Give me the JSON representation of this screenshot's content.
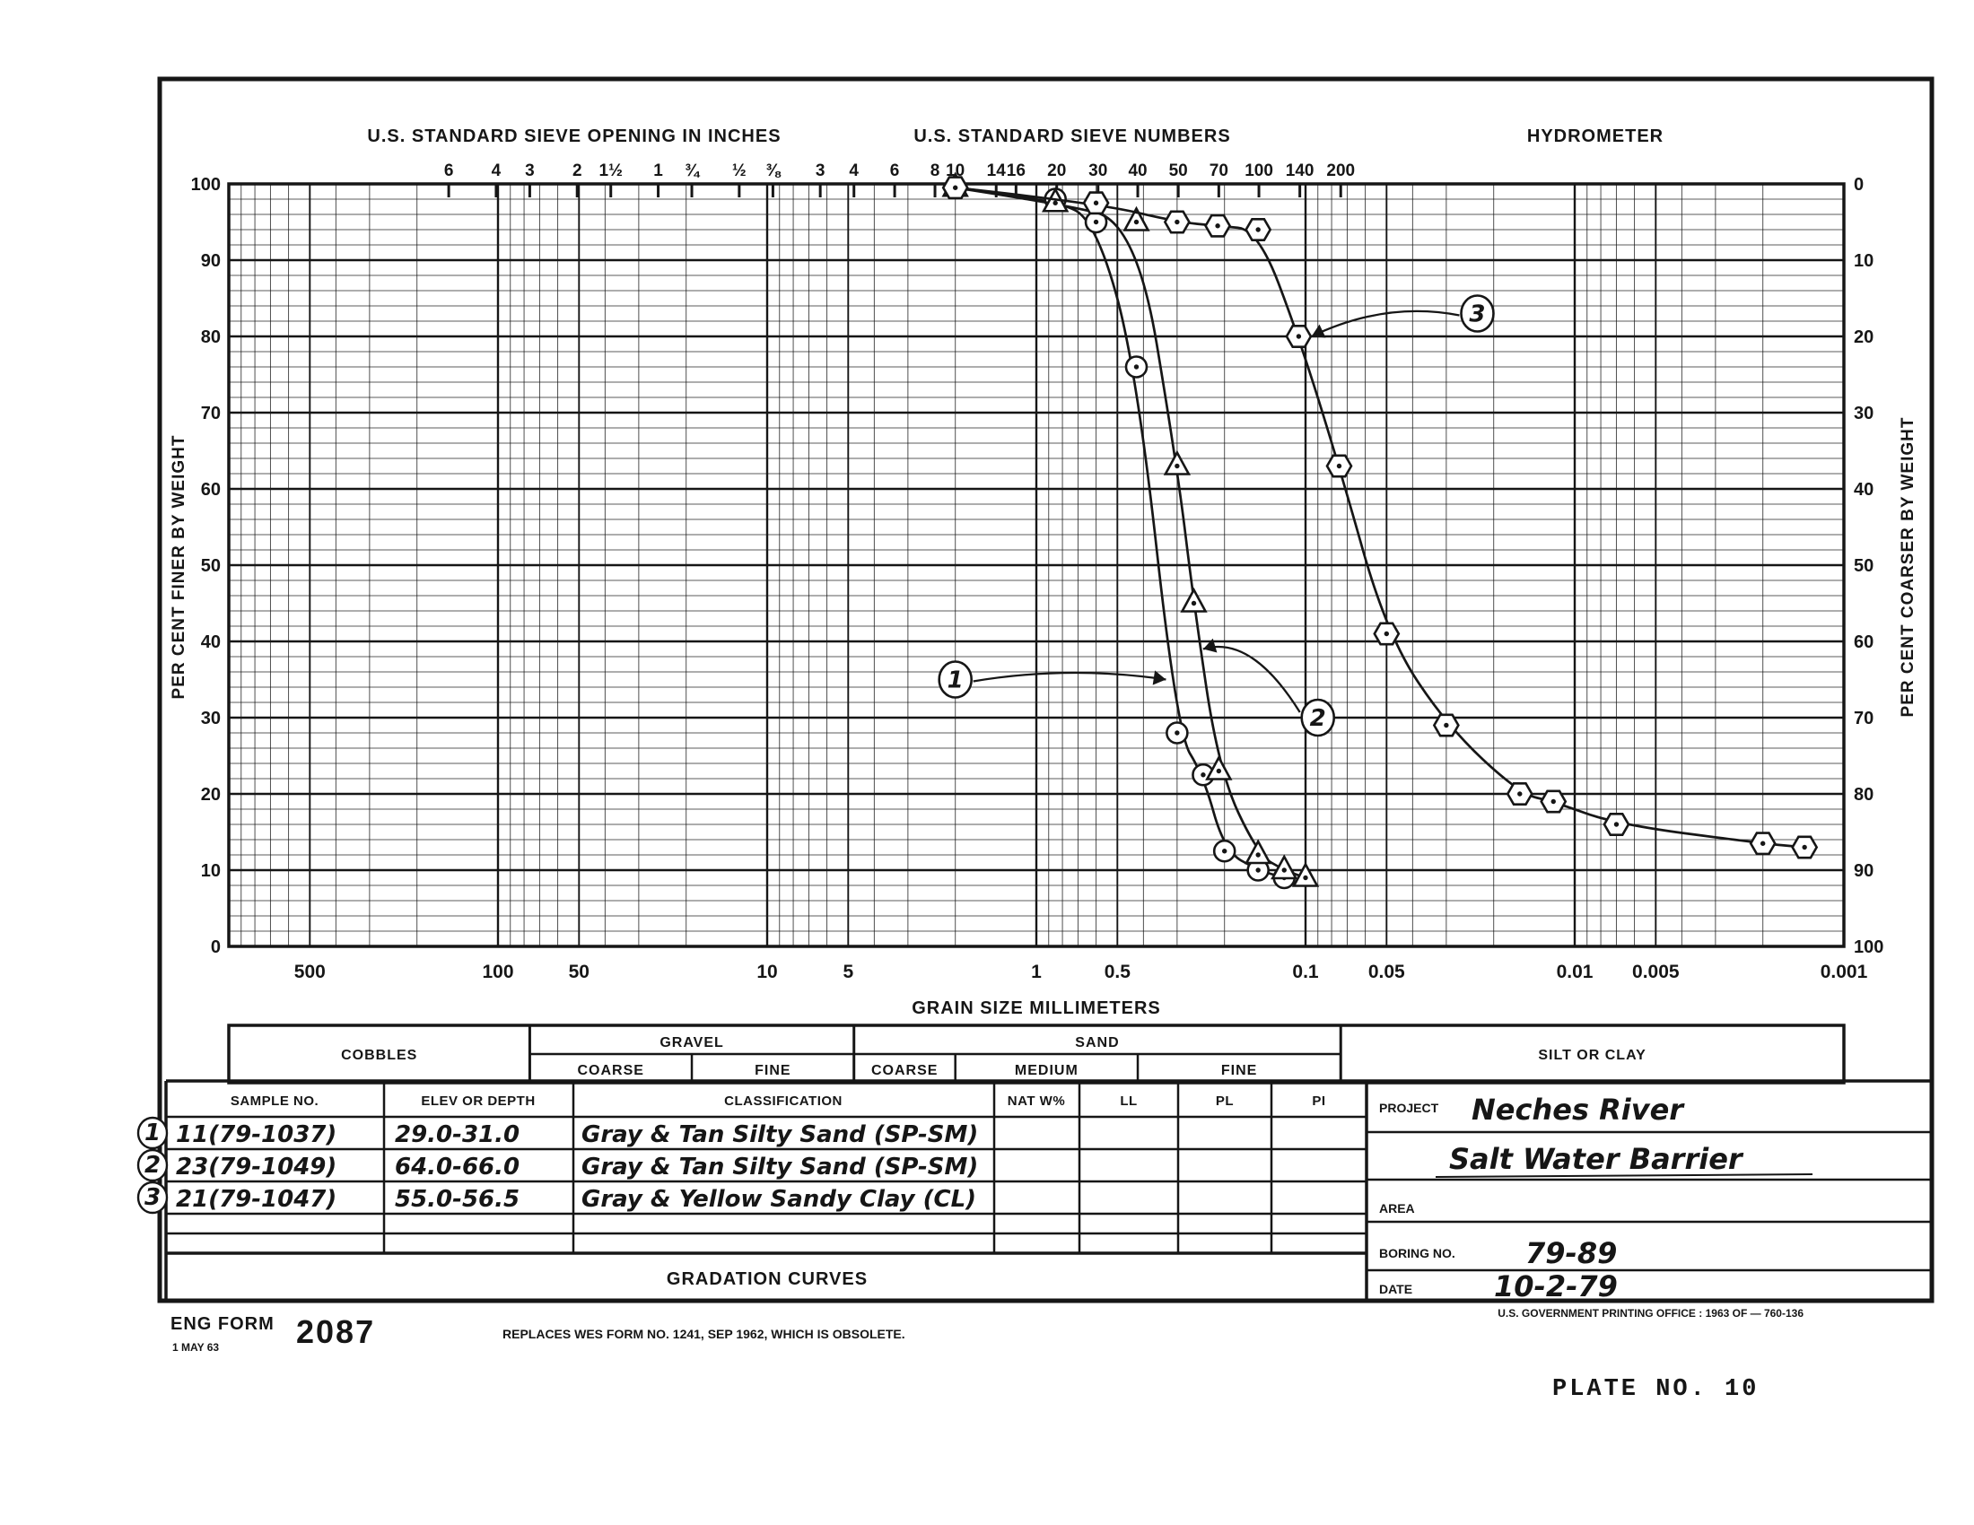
{
  "titles": {
    "sieve_inches": "U.S. STANDARD SIEVE OPENING IN INCHES",
    "sieve_numbers": "U.S. STANDARD SIEVE NUMBERS",
    "hydrometer": "HYDROMETER"
  },
  "chart_data": {
    "type": "line",
    "x_scale": "log",
    "x_unit": "millimeters",
    "xlim": [
      1000,
      0.001
    ],
    "ylim": [
      0,
      100
    ],
    "grid": "on",
    "xlabel": "GRAIN SIZE MILLIMETERS",
    "ylabel_left": "PER CENT FINER BY WEIGHT",
    "ylabel_right": "PER CENT COARSER BY WEIGHT",
    "x_tick_values": [
      500,
      100,
      50,
      10,
      5,
      1,
      0.5,
      0.1,
      0.05,
      0.01,
      0.005,
      0.001
    ],
    "x_tick_labels": [
      "500",
      "100",
      "50",
      "10",
      "5",
      "1",
      "0.5",
      "0.1",
      "0.05",
      "0.01",
      "0.005",
      "0.001"
    ],
    "y_ticks_left": [
      "100",
      "90",
      "80",
      "70",
      "60",
      "50",
      "40",
      "30",
      "20",
      "10",
      "0"
    ],
    "y_ticks_right": [
      "0",
      "10",
      "20",
      "30",
      "40",
      "50",
      "60",
      "70",
      "80",
      "90",
      "100"
    ],
    "sieve_inch_ticks": [
      {
        "label": "6",
        "mm": 152.4
      },
      {
        "label": "4",
        "mm": 101.6
      },
      {
        "label": "3",
        "mm": 76.2
      },
      {
        "label": "2",
        "mm": 50.8
      },
      {
        "label": "1½",
        "mm": 38.1
      },
      {
        "label": "1",
        "mm": 25.4
      },
      {
        "label": "¾",
        "mm": 19.05
      },
      {
        "label": "½",
        "mm": 12.7
      },
      {
        "label": "⅜",
        "mm": 9.52
      }
    ],
    "sieve_number_ticks": [
      {
        "label": "3",
        "mm": 6.35
      },
      {
        "label": "4",
        "mm": 4.76
      },
      {
        "label": "6",
        "mm": 3.36
      },
      {
        "label": "8",
        "mm": 2.38
      },
      {
        "label": "10",
        "mm": 2.0
      },
      {
        "label": "14",
        "mm": 1.41
      },
      {
        "label": "16",
        "mm": 1.19
      },
      {
        "label": "20",
        "mm": 0.84
      },
      {
        "label": "30",
        "mm": 0.59
      },
      {
        "label": "40",
        "mm": 0.42
      },
      {
        "label": "50",
        "mm": 0.297
      },
      {
        "label": "70",
        "mm": 0.21
      },
      {
        "label": "100",
        "mm": 0.149
      },
      {
        "label": "140",
        "mm": 0.105
      },
      {
        "label": "200",
        "mm": 0.074
      }
    ],
    "series": [
      {
        "id": "1",
        "sample_no": "11(79-1037)",
        "marker": "circle",
        "points": [
          [
            2.0,
            99.5
          ],
          [
            0.85,
            98
          ],
          [
            0.6,
            95
          ],
          [
            0.425,
            76
          ],
          [
            0.3,
            28
          ],
          [
            0.24,
            22.5
          ],
          [
            0.2,
            12.5
          ],
          [
            0.15,
            10
          ],
          [
            0.12,
            9
          ]
        ]
      },
      {
        "id": "2",
        "sample_no": "23(79-1049)",
        "marker": "triangle",
        "points": [
          [
            2.0,
            99.5
          ],
          [
            0.85,
            97.5
          ],
          [
            0.425,
            95
          ],
          [
            0.3,
            63
          ],
          [
            0.26,
            45
          ],
          [
            0.21,
            23
          ],
          [
            0.15,
            12
          ],
          [
            0.12,
            10
          ],
          [
            0.1,
            9
          ]
        ]
      },
      {
        "id": "3",
        "sample_no": "21(79-1047)",
        "marker": "hexagon",
        "points": [
          [
            2.0,
            99.5
          ],
          [
            0.6,
            97.5
          ],
          [
            0.3,
            95
          ],
          [
            0.212,
            94.5
          ],
          [
            0.15,
            94
          ],
          [
            0.106,
            80
          ],
          [
            0.075,
            63
          ],
          [
            0.05,
            41
          ],
          [
            0.03,
            29
          ],
          [
            0.016,
            20
          ],
          [
            0.012,
            19
          ],
          [
            0.007,
            16
          ],
          [
            0.002,
            13.5
          ],
          [
            0.0014,
            13
          ]
        ]
      }
    ],
    "annotations": [
      {
        "label": "1",
        "at_mm": 2.0,
        "at_percent": 35,
        "tip_mm": 0.33,
        "tip_percent": 35
      },
      {
        "label": "2",
        "at_mm": 0.09,
        "at_percent": 30,
        "tip_mm": 0.24,
        "tip_percent": 39
      },
      {
        "label": "3",
        "at_mm": 0.023,
        "at_percent": 83,
        "tip_mm": 0.095,
        "tip_percent": 80
      }
    ]
  },
  "bands": {
    "groups": [
      {
        "label": "COBBLES",
        "from_mm": 1000,
        "to_mm": 76.2,
        "sub": []
      },
      {
        "label": "GRAVEL",
        "from_mm": 76.2,
        "to_mm": 4.76,
        "sub": [
          {
            "label": "COARSE",
            "from_mm": 76.2,
            "to_mm": 19.05
          },
          {
            "label": "FINE",
            "from_mm": 19.05,
            "to_mm": 4.76
          }
        ]
      },
      {
        "label": "SAND",
        "from_mm": 4.76,
        "to_mm": 0.074,
        "sub": [
          {
            "label": "COARSE",
            "from_mm": 4.76,
            "to_mm": 2.0
          },
          {
            "label": "MEDIUM",
            "from_mm": 2.0,
            "to_mm": 0.42
          },
          {
            "label": "FINE",
            "from_mm": 0.42,
            "to_mm": 0.074
          }
        ]
      },
      {
        "label": "SILT OR CLAY",
        "from_mm": 0.074,
        "to_mm": 0.001,
        "sub": []
      }
    ]
  },
  "table": {
    "headers": [
      "SAMPLE NO.",
      "ELEV OR DEPTH",
      "CLASSIFICATION",
      "NAT W%",
      "LL",
      "PL",
      "PI"
    ],
    "rows": [
      {
        "badge": "1",
        "sample_no": "11(79-1037)",
        "elev": "29.0-31.0",
        "classification": "Gray & Tan Silty Sand (SP-SM)",
        "nat_w": "",
        "ll": "",
        "pl": "",
        "pi": ""
      },
      {
        "badge": "2",
        "sample_no": "23(79-1049)",
        "elev": "64.0-66.0",
        "classification": "Gray & Tan Silty Sand (SP-SM)",
        "nat_w": "",
        "ll": "",
        "pl": "",
        "pi": ""
      },
      {
        "badge": "3",
        "sample_no": "21(79-1047)",
        "elev": "55.0-56.5",
        "classification": "Gray & Yellow Sandy Clay (CL)",
        "nat_w": "",
        "ll": "",
        "pl": "",
        "pi": ""
      }
    ],
    "empty_row_count": 2
  },
  "project": {
    "project_label": "PROJECT",
    "project_line1": "Neches River",
    "project_line2": "Salt Water Barrier",
    "area_label": "AREA",
    "area_value": "",
    "boring_label": "BORING NO.",
    "boring_value": "79-89",
    "date_label": "DATE",
    "date_value": "10-2-79"
  },
  "footer": {
    "band_title": "GRADATION CURVES",
    "form_name": "ENG FORM",
    "form_number": "2087",
    "form_date": "1 MAY 63",
    "replaces": "REPLACES WES FORM NO. 1241, SEP 1962, WHICH IS OBSOLETE.",
    "printing": "U.S. GOVERNMENT PRINTING OFFICE : 1963 OF — 760-136",
    "plate": "PLATE NO. 10"
  },
  "colors": {
    "ink": "#161616",
    "paper": "#ffffff"
  }
}
